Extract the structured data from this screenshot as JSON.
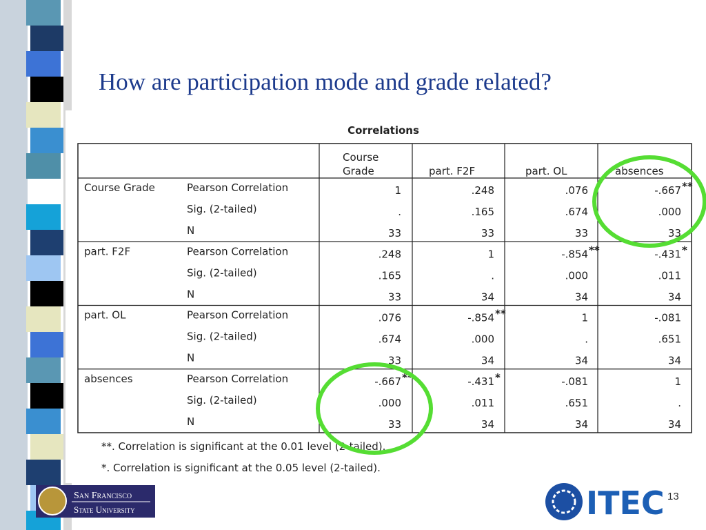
{
  "header": {
    "title": "How are participation mode and grade related?"
  },
  "table": {
    "title": "Correlations",
    "columns": [
      [
        "Course",
        "Grade"
      ],
      "part. F2F",
      "part. OL",
      "absences"
    ],
    "groups": [
      {
        "variable": "Course Grade",
        "stats": [
          "Pearson Correlation",
          "Sig. (2-tailed)",
          "N"
        ],
        "rows": [
          [
            "1",
            ".248",
            ".076",
            {
              "text": "-.667",
              "sup": "**"
            }
          ],
          [
            ".",
            ".165",
            ".674",
            ".000"
          ],
          [
            "33",
            "33",
            "33",
            "33"
          ]
        ]
      },
      {
        "variable": "part. F2F",
        "stats": [
          "Pearson Correlation",
          "Sig. (2-tailed)",
          "N"
        ],
        "rows": [
          [
            ".248",
            "1",
            {
              "text": "-.854",
              "sup": "**"
            },
            {
              "text": "-.431",
              "sup": "*"
            }
          ],
          [
            ".165",
            ".",
            ".000",
            ".011"
          ],
          [
            "33",
            "34",
            "34",
            "34"
          ]
        ]
      },
      {
        "variable": "part. OL",
        "stats": [
          "Pearson Correlation",
          "Sig. (2-tailed)",
          "N"
        ],
        "rows": [
          [
            ".076",
            {
              "text": "-.854",
              "sup": "**"
            },
            "1",
            "-.081"
          ],
          [
            ".674",
            ".000",
            ".",
            ".651"
          ],
          [
            "33",
            "34",
            "34",
            "34"
          ]
        ]
      },
      {
        "variable": "absences",
        "stats": [
          "Pearson Correlation",
          "Sig. (2-tailed)",
          "N"
        ],
        "rows": [
          [
            {
              "text": "-.667",
              "sup": "**"
            },
            {
              "text": "-.431",
              "sup": "*"
            },
            "-.081",
            "1"
          ],
          [
            ".000",
            ".011",
            ".651",
            "."
          ],
          [
            "33",
            "34",
            "34",
            "34"
          ]
        ]
      }
    ],
    "footnotes": [
      "**. Correlation is significant at the 0.01 level (2-tailed).",
      "*. Correlation is significant at the 0.05 level (2-tailed)."
    ]
  },
  "footer": {
    "university": [
      "San Francisco",
      "State University"
    ],
    "logo": "ITEC",
    "page": "13"
  }
}
